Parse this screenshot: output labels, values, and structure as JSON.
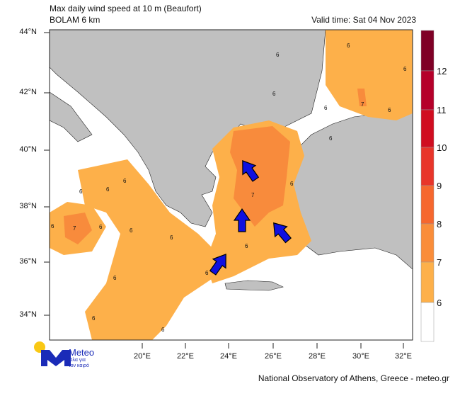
{
  "header": {
    "title": "Max daily wind speed at 10 m (Beaufort)",
    "model": "BOLAM 6 km",
    "valid_time": "Valid time: Sat 04 Nov 2023"
  },
  "map": {
    "lat_labels": [
      "44°N",
      "42°N",
      "40°N",
      "38°N",
      "36°N",
      "34°N"
    ],
    "lon_labels": [
      "20°E",
      "22°E",
      "24°E",
      "26°E",
      "28°E",
      "30°E",
      "32°E"
    ],
    "land_color": "#c0c0c0",
    "sea_color": "#ffffff",
    "contour_labels": [
      "6",
      "6",
      "6",
      "6",
      "6",
      "6",
      "6",
      "7",
      "6",
      "6",
      "6",
      "6",
      "7",
      "6",
      "6",
      "6",
      "6",
      "6",
      "7",
      "6",
      "6",
      "6",
      "6"
    ],
    "arrows": {
      "color": "#1010e0",
      "count": 4
    }
  },
  "colorbar": {
    "ticks": [
      "12",
      "11",
      "10",
      "9",
      "8",
      "7",
      "6"
    ],
    "colors": [
      "#7f0026",
      "#b5002a",
      "#d00d20",
      "#e8352a",
      "#f6672e",
      "#fa8d3a",
      "#fdb04a",
      "#ffffff"
    ]
  },
  "logo": {
    "name": "Meteo",
    "tagline1": "Όλα για",
    "tagline2": "τον καιρό"
  },
  "footer": {
    "credit": "National Observatory of Athens, Greece - meteo.gr"
  }
}
